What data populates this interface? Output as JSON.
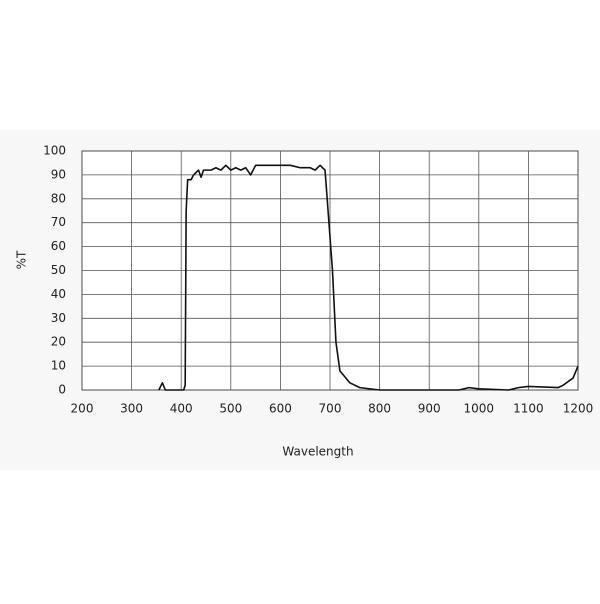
{
  "chart_data": {
    "type": "line",
    "xlabel": "Wavelength",
    "ylabel": "%T",
    "x": [
      355,
      362,
      368,
      405,
      408,
      410,
      413,
      420,
      425,
      435,
      440,
      445,
      460,
      470,
      480,
      490,
      500,
      510,
      520,
      530,
      540,
      550,
      600,
      620,
      640,
      660,
      670,
      680,
      690,
      705,
      712,
      720,
      740,
      760,
      800,
      960,
      980,
      1000,
      1060,
      1080,
      1100,
      1160,
      1170,
      1190,
      1200
    ],
    "values": [
      0,
      3,
      0,
      0,
      2,
      75,
      88,
      88,
      90,
      92,
      89,
      92,
      92,
      93,
      92,
      94,
      92,
      93,
      92,
      93,
      90,
      94,
      94,
      94,
      93,
      93,
      92,
      94,
      92,
      50,
      20,
      8,
      3,
      1,
      0,
      0,
      1,
      0.5,
      0,
      1,
      1.5,
      1,
      2,
      5,
      10
    ],
    "color": "#111111",
    "xlim": [
      200,
      1200
    ],
    "xticks": [
      200,
      300,
      400,
      500,
      600,
      700,
      800,
      900,
      1000,
      1100,
      1200
    ],
    "ylim": [
      0,
      100
    ],
    "yticks": [
      0,
      10,
      20,
      30,
      40,
      50,
      60,
      70,
      80,
      90,
      100
    ],
    "grid": true
  }
}
